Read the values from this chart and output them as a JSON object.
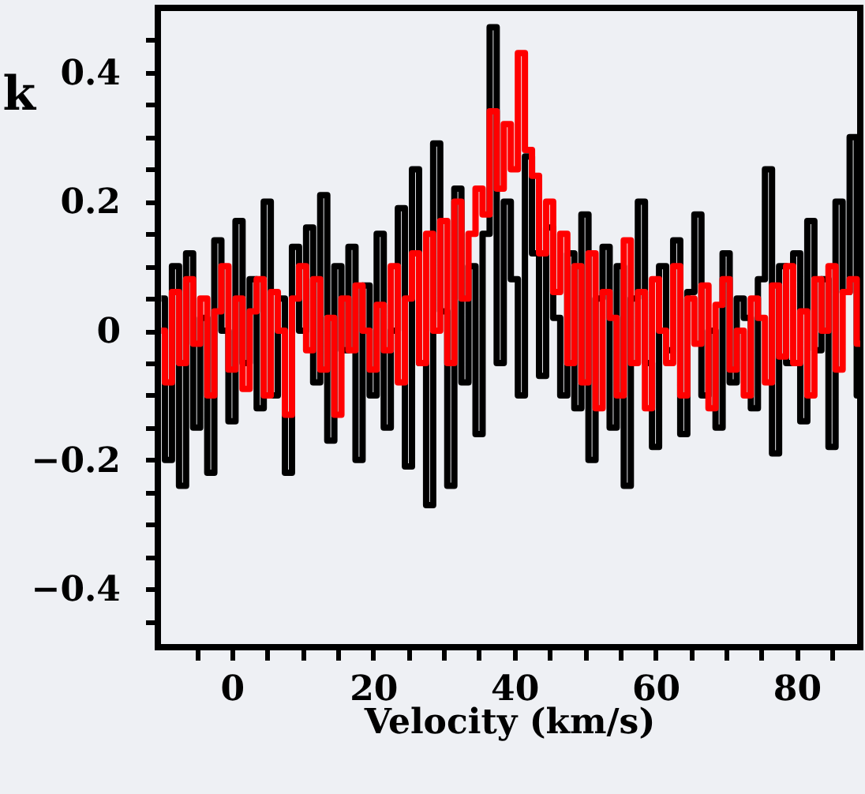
{
  "chart_data": {
    "type": "step",
    "xlabel": "Velocity (km/s)",
    "ylabel": "k",
    "x": [
      -10,
      -9,
      -8,
      -7,
      -6,
      -5,
      -4,
      -3,
      -2,
      -1,
      0,
      1,
      2,
      3,
      4,
      5,
      6,
      7,
      8,
      9,
      10,
      11,
      12,
      13,
      14,
      15,
      16,
      17,
      18,
      19,
      20,
      21,
      22,
      23,
      24,
      25,
      26,
      27,
      28,
      29,
      30,
      31,
      32,
      33,
      34,
      35,
      36,
      37,
      38,
      39,
      40,
      41,
      42,
      43,
      44,
      45,
      46,
      47,
      48,
      49,
      50,
      51,
      52,
      53,
      54,
      55,
      56,
      57,
      58,
      59,
      60,
      61,
      62,
      63,
      64,
      65,
      66,
      67,
      68,
      69,
      70,
      71,
      72,
      73,
      74,
      75,
      76,
      77,
      78,
      79,
      80,
      81,
      82,
      83,
      84,
      85,
      86,
      87,
      88,
      89
    ],
    "series": [
      {
        "color": "#000000",
        "values": [
          0.05,
          -0.2,
          0.1,
          -0.24,
          0.12,
          -0.15,
          0.02,
          -0.22,
          0.14,
          0.0,
          -0.14,
          0.17,
          -0.05,
          0.08,
          -0.12,
          0.2,
          -0.1,
          0.05,
          -0.22,
          0.13,
          0.0,
          0.16,
          -0.08,
          0.21,
          -0.17,
          0.1,
          -0.03,
          0.13,
          -0.2,
          0.07,
          -0.1,
          0.15,
          -0.15,
          0.0,
          0.19,
          -0.21,
          0.25,
          -0.05,
          -0.27,
          0.29,
          0.03,
          -0.24,
          0.22,
          -0.08,
          0.1,
          -0.16,
          0.15,
          0.47,
          -0.05,
          0.2,
          0.08,
          -0.1,
          0.27,
          0.12,
          -0.07,
          0.16,
          0.02,
          -0.1,
          0.12,
          -0.12,
          0.18,
          -0.2,
          0.05,
          0.13,
          -0.15,
          0.1,
          -0.24,
          0.05,
          0.2,
          -0.05,
          -0.18,
          0.1,
          -0.03,
          0.14,
          -0.16,
          0.06,
          0.18,
          -0.1,
          0.0,
          -0.15,
          0.12,
          -0.08,
          0.05,
          0.02,
          -0.12,
          0.08,
          0.25,
          -0.19,
          0.1,
          -0.05,
          0.12,
          -0.14,
          0.17,
          -0.03,
          0.08,
          -0.18,
          0.2,
          0.06,
          0.3,
          -0.1
        ]
      },
      {
        "color": "#ff0000",
        "values": [
          0.0,
          -0.08,
          0.06,
          -0.05,
          0.08,
          -0.02,
          0.05,
          -0.1,
          0.03,
          0.1,
          -0.06,
          0.05,
          -0.09,
          0.03,
          0.08,
          -0.1,
          0.06,
          0.0,
          -0.13,
          0.05,
          0.1,
          -0.03,
          0.08,
          -0.06,
          0.02,
          -0.13,
          0.05,
          -0.03,
          0.07,
          0.0,
          -0.06,
          0.04,
          -0.03,
          0.1,
          -0.08,
          0.05,
          0.12,
          -0.05,
          0.15,
          0.0,
          0.17,
          -0.05,
          0.2,
          0.05,
          0.15,
          0.22,
          0.18,
          0.34,
          0.22,
          0.32,
          0.25,
          0.43,
          0.28,
          0.24,
          0.12,
          0.2,
          0.06,
          0.15,
          -0.05,
          0.1,
          -0.08,
          0.12,
          -0.12,
          0.06,
          0.02,
          -0.1,
          0.14,
          -0.05,
          0.06,
          -0.12,
          0.08,
          0.0,
          -0.05,
          0.1,
          -0.1,
          0.05,
          -0.02,
          0.07,
          -0.12,
          0.04,
          0.08,
          -0.06,
          0.0,
          -0.1,
          0.05,
          0.02,
          -0.08,
          0.07,
          -0.04,
          0.1,
          -0.05,
          0.03,
          -0.1,
          0.08,
          0.0,
          0.1,
          -0.06,
          0.06,
          0.08,
          -0.02
        ]
      }
    ],
    "xlim": [
      -10.5,
      89
    ],
    "xticks": [
      {
        "value": -5,
        "label": null
      },
      0,
      {
        "value": 5,
        "label": null
      },
      {
        "value": 10,
        "label": null
      },
      {
        "value": 15,
        "label": null
      },
      20,
      {
        "value": 25,
        "label": null
      },
      {
        "value": 30,
        "label": null
      },
      {
        "value": 35,
        "label": null
      },
      40,
      {
        "value": 45,
        "label": null
      },
      {
        "value": 50,
        "label": null
      },
      {
        "value": 55,
        "label": null
      },
      60,
      {
        "value": 65,
        "label": null
      },
      {
        "value": 70,
        "label": null
      },
      {
        "value": 75,
        "label": null
      },
      80,
      {
        "value": 85,
        "label": null
      }
    ],
    "ylim": [
      -0.49,
      0.5
    ],
    "yticks": [
      {
        "value": -0.45,
        "label": null
      },
      {
        "value": -0.4,
        "label": "−0.4"
      },
      {
        "value": -0.35,
        "label": null
      },
      {
        "value": -0.3,
        "label": null
      },
      {
        "value": -0.25,
        "label": null
      },
      {
        "value": -0.2,
        "label": "−0.2"
      },
      {
        "value": -0.15,
        "label": null
      },
      {
        "value": -0.1,
        "label": null
      },
      {
        "value": -0.05,
        "label": null
      },
      0,
      {
        "value": 0.05,
        "label": null
      },
      {
        "value": 0.1,
        "label": null
      },
      {
        "value": 0.15,
        "label": null
      },
      0.2,
      {
        "value": 0.25,
        "label": null
      },
      {
        "value": 0.3,
        "label": null
      },
      {
        "value": 0.35,
        "label": null
      },
      0.4,
      {
        "value": 0.45,
        "label": null
      }
    ],
    "grid": false,
    "line_style": "solid"
  }
}
